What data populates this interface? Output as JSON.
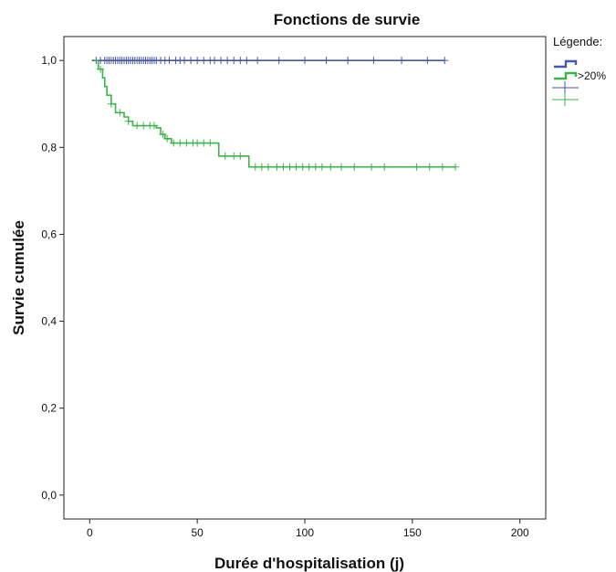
{
  "chart_data": {
    "type": "line",
    "title": "Fonctions de survie",
    "xlabel": "Durée d'hospitalisation (j)",
    "ylabel": "Survie cumulée",
    "xlim": [
      -12,
      212
    ],
    "ylim": [
      -0.055,
      1.055
    ],
    "xticks": [
      0,
      50,
      100,
      150,
      200
    ],
    "xtick_labels": [
      "0",
      "50",
      "100",
      "150",
      "200"
    ],
    "yticks": [
      0.0,
      0.2,
      0.4,
      0.6,
      0.8,
      1.0
    ],
    "ytick_labels": [
      "0,0",
      "0,2",
      "0,4",
      "0,6",
      "0,8",
      "1,0"
    ],
    "grid": false,
    "legend": {
      "title": "Légende:",
      "placement": "right",
      "entries": [
        {
          "label": "",
          "symbol": "step",
          "color": "#4457a8"
        },
        {
          "label": ">20%",
          "symbol": "step",
          "color": "#3cb34a"
        },
        {
          "label": "",
          "symbol": "cross",
          "color": "#4457a8"
        },
        {
          "label": "",
          "symbol": "cross",
          "color": "#3cb34a"
        }
      ]
    },
    "series": [
      {
        "color": "#4457a8",
        "steps": [
          [
            1,
            1.0
          ],
          [
            165,
            1.0
          ]
        ],
        "censored": [
          3,
          5,
          7,
          8,
          9,
          10,
          11,
          12,
          13,
          14,
          15,
          16,
          17,
          18,
          19,
          20,
          21,
          22,
          23,
          24,
          25,
          26,
          27,
          28,
          29,
          30,
          31,
          33,
          35,
          37,
          40,
          42,
          44,
          47,
          50,
          53,
          56,
          58,
          61,
          64,
          67,
          70,
          73,
          78,
          88,
          100,
          110,
          120,
          132,
          145,
          157,
          165
        ],
        "censored_y": 1.0
      },
      {
        "name": ">20%",
        "color": "#3cb34a",
        "steps": [
          [
            2,
            1.0
          ],
          [
            4,
            0.98
          ],
          [
            6,
            0.96
          ],
          [
            7,
            0.94
          ],
          [
            8,
            0.92
          ],
          [
            10,
            0.9
          ],
          [
            12,
            0.88
          ],
          [
            16,
            0.87
          ],
          [
            18,
            0.86
          ],
          [
            20,
            0.85
          ],
          [
            31,
            0.845
          ],
          [
            33,
            0.83
          ],
          [
            35,
            0.82
          ],
          [
            38,
            0.81
          ],
          [
            60,
            0.78
          ],
          [
            74,
            0.755
          ],
          [
            170,
            0.755
          ]
        ],
        "censored": [
          5,
          10,
          14,
          18,
          22,
          25,
          28,
          30,
          34,
          36,
          39,
          42,
          45,
          48,
          50,
          53,
          56,
          63,
          67,
          70,
          77,
          80,
          83,
          87,
          90,
          93,
          96,
          99,
          102,
          105,
          108,
          112,
          117,
          123,
          131,
          137,
          152,
          158,
          164,
          170
        ],
        "censored_y_from_steps": true
      }
    ]
  }
}
